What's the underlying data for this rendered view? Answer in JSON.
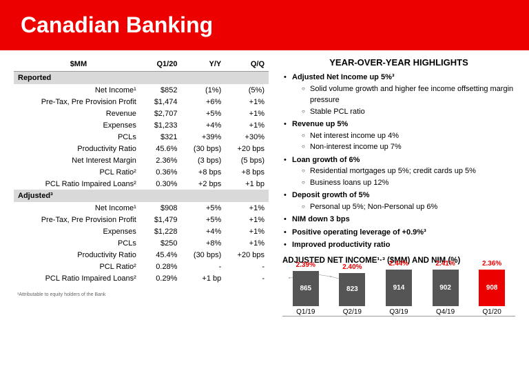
{
  "header": {
    "title": "Canadian Banking"
  },
  "table": {
    "headers": [
      "$MM",
      "Q1/20",
      "Y/Y",
      "Q/Q"
    ],
    "sections": [
      {
        "name": "Reported",
        "rows": [
          {
            "label": "Net Income¹",
            "v1": "$852",
            "v2": "(1%)",
            "v3": "(5%)"
          },
          {
            "label": "Pre-Tax, Pre Provision Profit",
            "v1": "$1,474",
            "v2": "+6%",
            "v3": "+1%"
          },
          {
            "label": "Revenue",
            "v1": "$2,707",
            "v2": "+5%",
            "v3": "+1%"
          },
          {
            "label": "Expenses",
            "v1": "$1,233",
            "v2": "+4%",
            "v3": "+1%"
          },
          {
            "label": "PCLs",
            "v1": "$321",
            "v2": "+39%",
            "v3": "+30%"
          },
          {
            "label": "Productivity Ratio",
            "v1": "45.6%",
            "v2": "(30 bps)",
            "v3": "+20 bps"
          },
          {
            "label": "Net Interest Margin",
            "v1": "2.36%",
            "v2": "(3 bps)",
            "v3": "(5 bps)"
          },
          {
            "label": "PCL Ratio²",
            "v1": "0.36%",
            "v2": "+8 bps",
            "v3": "+8 bps"
          },
          {
            "label": "PCL Ratio Impaired Loans²",
            "v1": "0.30%",
            "v2": "+2 bps",
            "v3": "+1 bp"
          }
        ]
      },
      {
        "name": "Adjusted³",
        "rows": [
          {
            "label": "Net Income¹",
            "v1": "$908",
            "v2": "+5%",
            "v3": "+1%"
          },
          {
            "label": "Pre-Tax, Pre Provision Profit",
            "v1": "$1,479",
            "v2": "+5%",
            "v3": "+1%"
          },
          {
            "label": "Expenses",
            "v1": "$1,228",
            "v2": "+4%",
            "v3": "+1%"
          },
          {
            "label": "PCLs",
            "v1": "$250",
            "v2": "+8%",
            "v3": "+1%"
          },
          {
            "label": "Productivity Ratio",
            "v1": "45.4%",
            "v2": "(30 bps)",
            "v3": "+20 bps"
          },
          {
            "label": "PCL Ratio²",
            "v1": "0.28%",
            "v2": "-",
            "v3": "-"
          },
          {
            "label": "PCL Ratio Impaired Loans²",
            "v1": "0.29%",
            "v2": "+1 bp",
            "v3": "-"
          }
        ]
      }
    ]
  },
  "highlights": {
    "title": "YEAR-OVER-YEAR HIGHLIGHTS",
    "items": [
      {
        "main": "Adjusted Net Income up 5%³",
        "bold": true,
        "sub": [
          "Solid volume growth and higher fee income offsetting margin pressure",
          "Stable PCL ratio"
        ]
      },
      {
        "main": "Revenue up 5%",
        "bold": true,
        "sub": [
          "Net interest income up 4%",
          "Non-interest income up 7%"
        ]
      },
      {
        "main": "Loan growth of 6%",
        "bold": true,
        "sub": [
          "Residential mortgages up 5%; credit cards up 5%",
          "Business loans up 12%"
        ]
      },
      {
        "main": "Deposit growth of 5%",
        "bold": true,
        "sub": [
          "Personal up 5%; Non-Personal up 6%"
        ]
      },
      {
        "main": "NIM down 3 bps",
        "bold": true
      },
      {
        "main": "Positive operating leverage of +0.9%³",
        "bold": true
      },
      {
        "main": "Improved productivity ratio",
        "bold": true
      }
    ]
  },
  "chart": {
    "title": "ADJUSTED NET INCOME¹·³ ($MM) AND NIM (%)",
    "type": "bar-line",
    "max_value": 950,
    "bar_color_default": "#555555",
    "bar_color_highlight": "#ec0000",
    "nim_color": "#ec0000",
    "line_color": "#888888",
    "data": [
      {
        "period": "Q1/19",
        "income": 865,
        "nim": "2.39%",
        "highlight": false
      },
      {
        "period": "Q2/19",
        "income": 823,
        "nim": "2.40%",
        "highlight": false
      },
      {
        "period": "Q3/19",
        "income": 914,
        "nim": "2.44%",
        "highlight": false
      },
      {
        "period": "Q4/19",
        "income": 902,
        "nim": "2.41%",
        "highlight": false
      },
      {
        "period": "Q1/20",
        "income": 908,
        "nim": "2.36%",
        "highlight": true
      }
    ]
  },
  "footnote": "¹Attributable to equity holders of the Bank"
}
